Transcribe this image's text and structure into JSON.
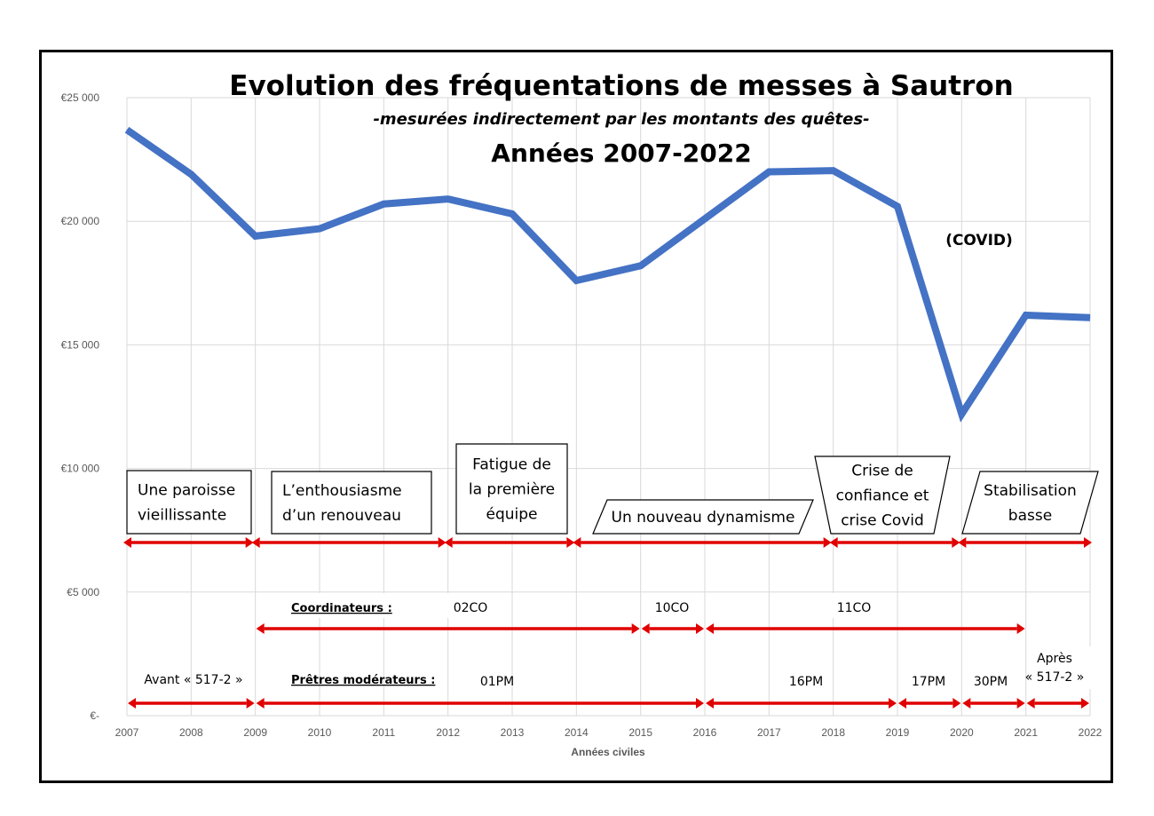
{
  "title": "Evolution des fréquentations de messes à Sautron",
  "subtitle": "-mesurées indirectement par les montants des quêtes-",
  "subtitle2": "Années 2007-2022",
  "chart_data": {
    "type": "line",
    "title": "Evolution des fréquentations de messes à Sautron",
    "xlabel": "Années civiles",
    "ylabel": "",
    "x": [
      2007,
      2008,
      2009,
      2010,
      2011,
      2012,
      2013,
      2014,
      2015,
      2016,
      2017,
      2018,
      2019,
      2020,
      2021,
      2022
    ],
    "series": [
      {
        "values": [
          23700,
          21900,
          19400,
          19700,
          20700,
          20900,
          20300,
          17600,
          18200,
          20100,
          22000,
          22050,
          20600,
          12200,
          16200,
          16100
        ]
      }
    ],
    "ylim": [
      0,
      25000
    ],
    "xlim": [
      2007,
      2022
    ],
    "y_ticks": [
      0,
      5000,
      10000,
      15000,
      20000,
      25000
    ],
    "y_tick_labels": [
      "€-",
      "€5 000",
      "€10 000",
      "€15 000",
      "€20 000",
      "€25 000"
    ],
    "grid": true,
    "line_color": "#4472C4"
  },
  "annotations": {
    "covid": "(COVID)",
    "phases": [
      {
        "lines": [
          "Une paroisse",
          "vieillissante"
        ],
        "from": 2007,
        "to": 2009
      },
      {
        "lines": [
          "L’enthousiasme",
          "d’un renouveau"
        ],
        "from": 2009,
        "to": 2012
      },
      {
        "lines": [
          "Fatigue de",
          "la première",
          "équipe"
        ],
        "from": 2012,
        "to": 2014
      },
      {
        "lines": [
          "Un nouveau dynamisme"
        ],
        "from": 2014,
        "to": 2018
      },
      {
        "lines": [
          "Crise de",
          "confiance et",
          "crise Covid"
        ],
        "from": 2018,
        "to": 2020
      },
      {
        "lines": [
          "Stabilisation",
          "basse"
        ],
        "from": 2020,
        "to": 2022
      }
    ],
    "coordinateurs": {
      "label": "Coordinateurs :",
      "periods": [
        {
          "label": "02CO",
          "from": 2009,
          "to": 2015
        },
        {
          "label": "10CO",
          "from": 2015,
          "to": 2016
        },
        {
          "label": "11CO",
          "from": 2016,
          "to": 2021
        }
      ]
    },
    "pretres": {
      "label": "Prêtres modérateurs :",
      "before_label": "Avant « 517-2 »",
      "after_label": [
        "Après",
        "« 517-2 »"
      ],
      "periods": [
        {
          "label": "",
          "from": 2007,
          "to": 2009
        },
        {
          "label": "01PM",
          "from": 2009,
          "to": 2016
        },
        {
          "label": "16PM",
          "from": 2016,
          "to": 2019
        },
        {
          "label": "17PM",
          "from": 2019,
          "to": 2020
        },
        {
          "label": "30PM",
          "from": 2020,
          "to": 2021
        },
        {
          "label": "",
          "from": 2021,
          "to": 2022
        }
      ]
    }
  },
  "colors": {
    "line": "#4472C4",
    "arrow": "#E00000",
    "grid": "#D9D9D9"
  }
}
